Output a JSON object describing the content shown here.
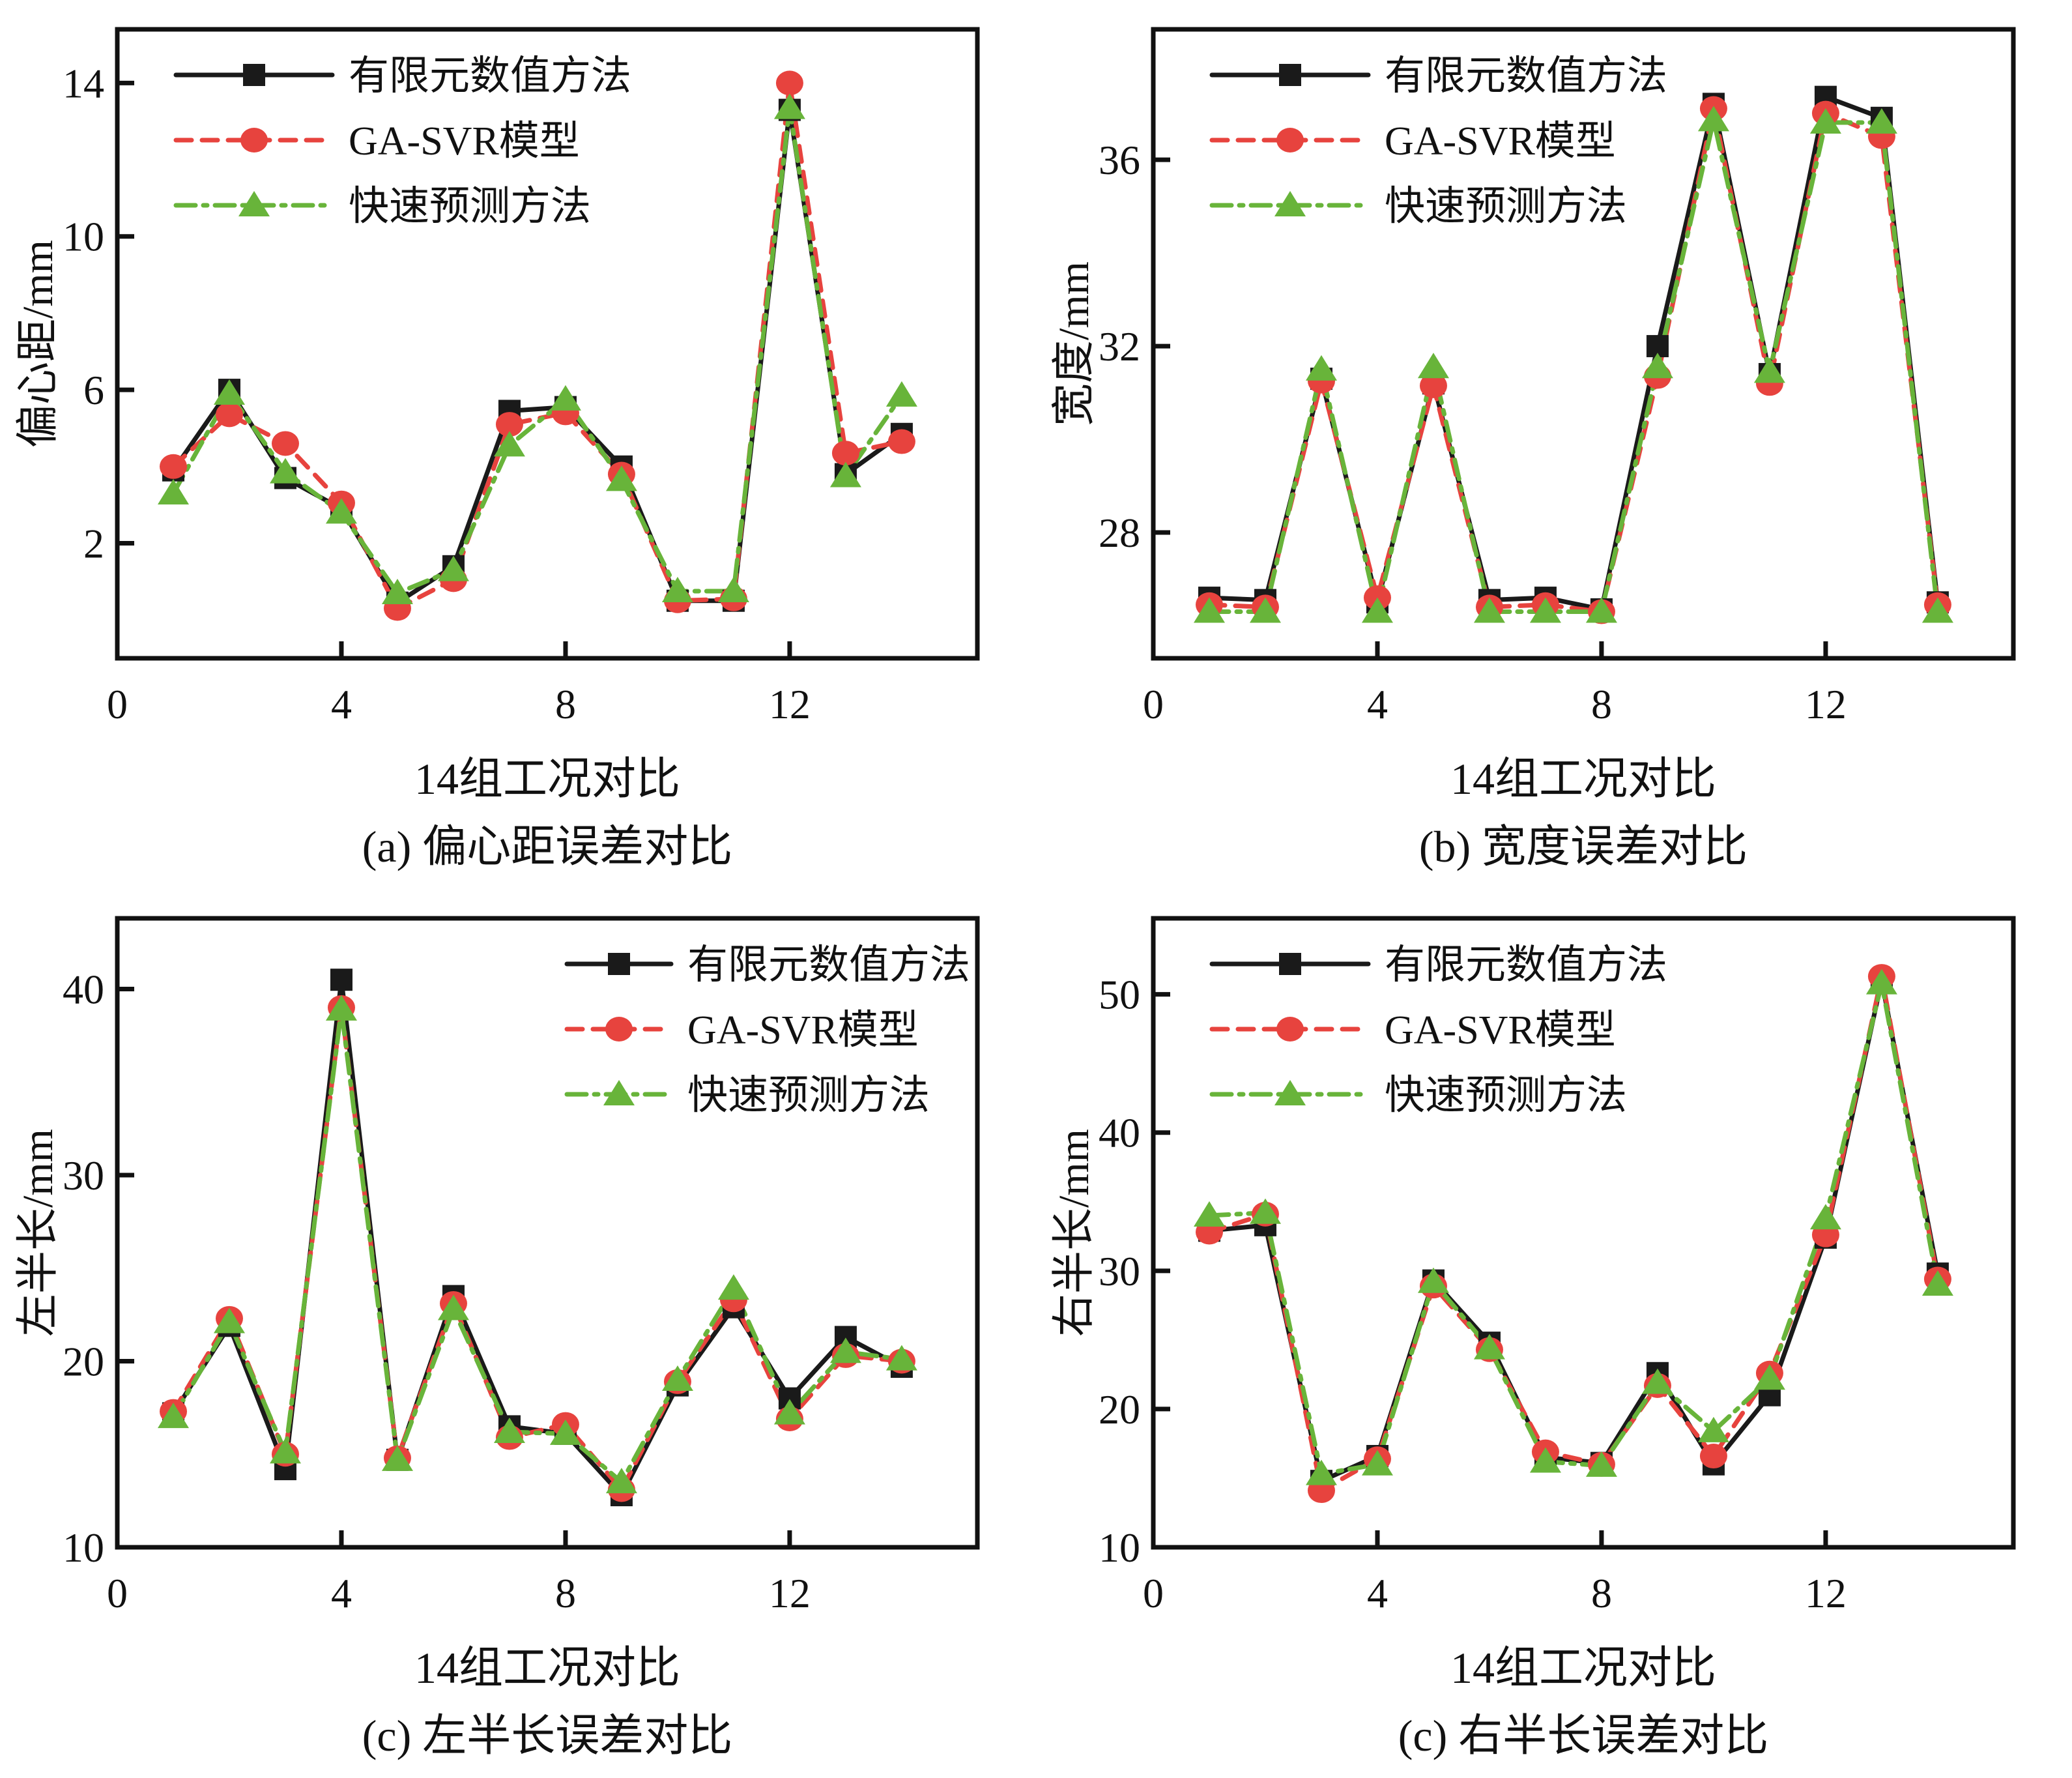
{
  "figure": {
    "background": "#ffffff",
    "series_colors": {
      "fem": "#1a1a1a",
      "gasvr": "#e7433e",
      "fast": "#68b43a"
    },
    "legend_labels": [
      "有限元数值方法",
      "GA-SVR模型",
      "快速预测方法"
    ]
  },
  "chart_data": [
    {
      "type": "line",
      "panel": "a",
      "ylabel": "偏心距/mm",
      "xlabel": "14组工况对比",
      "caption": "(a) 偏心距误差对比",
      "xlim": [
        0,
        15.35
      ],
      "ylim": [
        -1,
        15.4
      ],
      "xticks": [
        0,
        4,
        8,
        12
      ],
      "yticks": [
        2,
        6,
        10,
        14
      ],
      "grid": false,
      "legend_position": "top-left",
      "x": [
        1,
        2,
        3,
        4,
        5,
        6,
        7,
        8,
        9,
        10,
        11,
        12,
        13,
        14
      ],
      "series": [
        {
          "name": "有限元数值方法",
          "color": "#1a1a1a",
          "marker": "square",
          "linestyle": "solid",
          "values": [
            3.9,
            6.0,
            3.7,
            2.9,
            0.45,
            1.4,
            5.45,
            5.55,
            4.0,
            0.5,
            0.5,
            13.3,
            3.8,
            4.85
          ]
        },
        {
          "name": "GA-SVR模型",
          "color": "#e7433e",
          "marker": "circle",
          "linestyle": "dashed",
          "values": [
            4.0,
            5.35,
            4.6,
            3.05,
            0.3,
            1.05,
            5.1,
            5.4,
            3.8,
            0.5,
            0.55,
            14.0,
            4.35,
            4.65
          ]
        },
        {
          "name": "快速预测方法",
          "color": "#68b43a",
          "marker": "triangle",
          "linestyle": "dashdot",
          "values": [
            3.3,
            5.9,
            3.85,
            2.8,
            0.7,
            1.3,
            4.55,
            5.75,
            3.65,
            0.75,
            0.75,
            13.35,
            3.75,
            5.85
          ]
        }
      ]
    },
    {
      "type": "line",
      "panel": "b",
      "ylabel": "宽度/mm",
      "xlabel": "14组工况对比",
      "caption": "(b) 宽度误差对比",
      "xlim": [
        0,
        15.35
      ],
      "ylim": [
        25.3,
        38.8
      ],
      "xticks": [
        0,
        4,
        8,
        12
      ],
      "yticks": [
        28,
        32,
        36
      ],
      "grid": false,
      "legend_position": "top-left",
      "x": [
        1,
        2,
        3,
        4,
        5,
        6,
        7,
        8,
        9,
        10,
        11,
        12,
        13,
        14
      ],
      "series": [
        {
          "name": "有限元数值方法",
          "color": "#1a1a1a",
          "marker": "square",
          "linestyle": "solid",
          "values": [
            26.6,
            26.55,
            31.3,
            26.5,
            31.2,
            26.55,
            26.6,
            26.35,
            32.0,
            37.2,
            31.4,
            37.35,
            36.9,
            26.5
          ]
        },
        {
          "name": "GA-SVR模型",
          "color": "#e7433e",
          "marker": "circle",
          "linestyle": "dashed",
          "values": [
            26.45,
            26.4,
            31.25,
            26.6,
            31.15,
            26.4,
            26.45,
            26.3,
            31.35,
            37.1,
            31.2,
            37.0,
            36.5,
            26.45
          ]
        },
        {
          "name": "快速预测方法",
          "color": "#68b43a",
          "marker": "triangle",
          "linestyle": "dashdot",
          "values": [
            26.3,
            26.3,
            31.5,
            26.3,
            31.55,
            26.3,
            26.3,
            26.3,
            31.55,
            36.85,
            31.45,
            36.8,
            36.8,
            26.3
          ]
        }
      ]
    },
    {
      "type": "line",
      "panel": "c",
      "ylabel": "左半长/mm",
      "xlabel": "14组工况对比",
      "caption": "(c) 左半长误差对比",
      "xlim": [
        0,
        15.35
      ],
      "ylim": [
        10,
        43.8
      ],
      "xticks": [
        0,
        4,
        8,
        12
      ],
      "yticks": [
        10,
        20,
        30,
        40
      ],
      "grid": false,
      "legend_position": "top-right",
      "x": [
        1,
        2,
        3,
        4,
        5,
        6,
        7,
        8,
        9,
        10,
        11,
        12,
        13,
        14
      ],
      "series": [
        {
          "name": "有限元数值方法",
          "color": "#1a1a1a",
          "marker": "square",
          "linestyle": "solid",
          "values": [
            17.2,
            21.9,
            14.2,
            40.5,
            14.7,
            23.5,
            16.5,
            16.1,
            12.8,
            18.7,
            22.9,
            18.0,
            21.3,
            19.7
          ]
        },
        {
          "name": "GA-SVR模型",
          "color": "#e7433e",
          "marker": "circle",
          "linestyle": "dashed",
          "values": [
            17.3,
            22.3,
            15.0,
            39.0,
            14.8,
            23.1,
            15.9,
            16.6,
            13.1,
            18.9,
            23.3,
            16.9,
            20.3,
            20.0
          ]
        },
        {
          "name": "快速预测方法",
          "color": "#68b43a",
          "marker": "triangle",
          "linestyle": "dashdot",
          "values": [
            17.0,
            22.1,
            15.1,
            38.9,
            14.7,
            22.8,
            16.2,
            16.1,
            13.5,
            19.0,
            23.9,
            17.2,
            20.5,
            20.1
          ]
        }
      ]
    },
    {
      "type": "line",
      "panel": "d",
      "ylabel": "右半长/mm",
      "xlabel": "14组工况对比",
      "caption": "(c) 右半长误差对比",
      "xlim": [
        0,
        15.35
      ],
      "ylim": [
        10,
        55.5
      ],
      "xticks": [
        0,
        4,
        8,
        12
      ],
      "yticks": [
        10,
        20,
        30,
        40,
        50
      ],
      "grid": false,
      "legend_position": "top-left",
      "x": [
        1,
        2,
        3,
        4,
        5,
        6,
        7,
        8,
        9,
        10,
        11,
        12,
        13,
        14
      ],
      "series": [
        {
          "name": "有限元数值方法",
          "color": "#1a1a1a",
          "marker": "square",
          "linestyle": "solid",
          "values": [
            32.9,
            33.3,
            14.8,
            16.6,
            29.3,
            24.8,
            16.5,
            16.1,
            22.6,
            16.0,
            21.0,
            32.4,
            51.0,
            29.8
          ]
        },
        {
          "name": "GA-SVR模型",
          "color": "#e7433e",
          "marker": "circle",
          "linestyle": "dashed",
          "values": [
            32.8,
            34.1,
            14.1,
            16.4,
            28.9,
            24.3,
            16.9,
            16.0,
            21.7,
            16.6,
            22.6,
            32.6,
            51.3,
            29.4
          ]
        },
        {
          "name": "快速预测方法",
          "color": "#68b43a",
          "marker": "triangle",
          "linestyle": "dashdot",
          "values": [
            34.0,
            34.2,
            15.3,
            16.0,
            29.2,
            24.4,
            16.2,
            15.9,
            21.9,
            18.4,
            22.2,
            33.8,
            50.8,
            29.0
          ]
        }
      ]
    }
  ]
}
